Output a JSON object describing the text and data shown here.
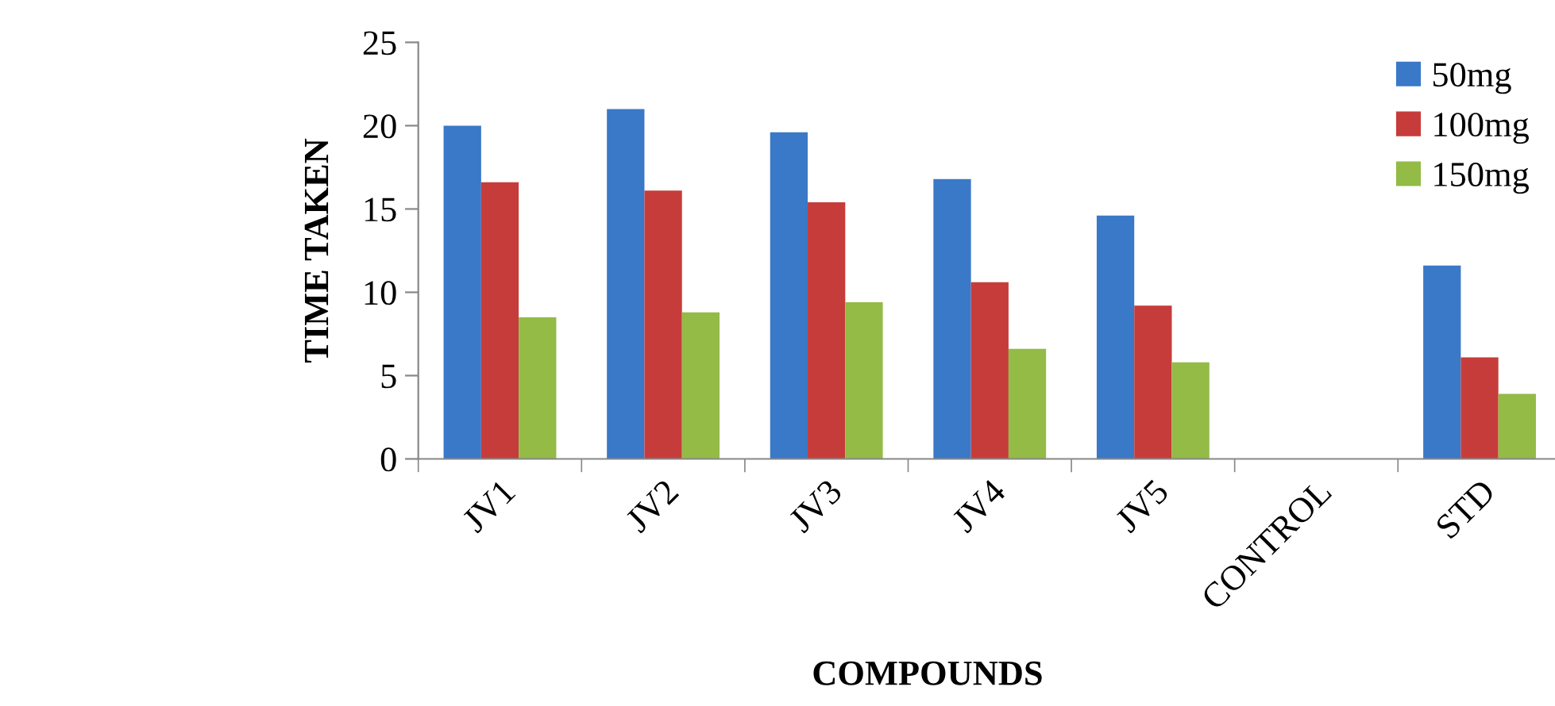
{
  "chart_data": {
    "type": "bar",
    "xlabel": "COMPOUNDS",
    "ylabel": "TIME TAKEN",
    "categories": [
      "JV1",
      "JV2",
      "JV3",
      "JV4",
      "JV5",
      "CONTROL",
      "STD"
    ],
    "series": [
      {
        "name": "50mg",
        "color": "#3a78c8",
        "values": [
          20.0,
          21.0,
          19.6,
          16.8,
          14.6,
          0,
          11.6
        ]
      },
      {
        "name": "100mg",
        "color": "#c63c3a",
        "values": [
          16.6,
          16.1,
          15.4,
          10.6,
          9.2,
          0,
          6.1
        ]
      },
      {
        "name": "150mg",
        "color": "#93bb46",
        "values": [
          8.5,
          8.8,
          9.4,
          6.6,
          5.8,
          0,
          3.9
        ]
      }
    ],
    "ylim": [
      0,
      25
    ],
    "yticks": [
      0,
      5,
      10,
      15,
      20,
      25
    ],
    "grid": false,
    "legend": "top right"
  }
}
